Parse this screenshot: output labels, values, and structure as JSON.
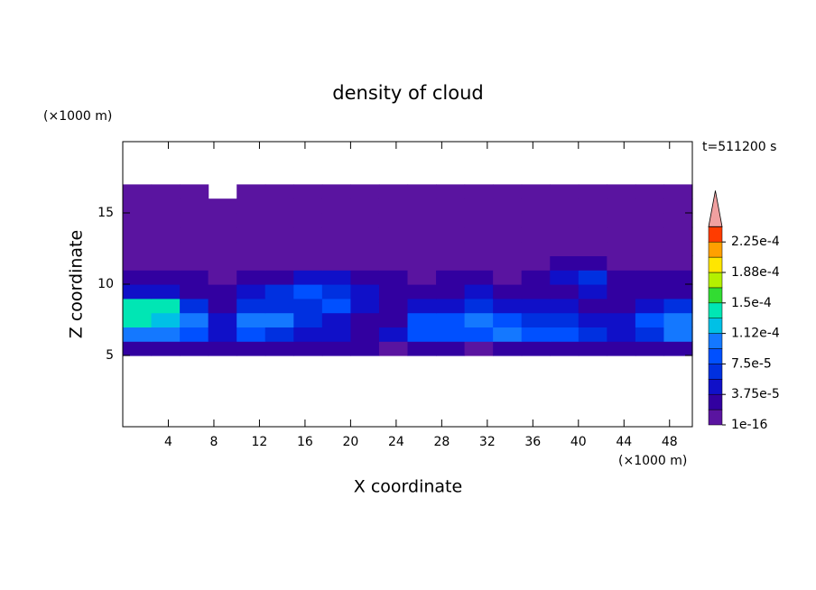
{
  "chart_data": {
    "type": "contour",
    "title": "density of cloud",
    "x_label": "X coordinate",
    "y_label": "Z coordinate",
    "x_unit": "(×1000 m)",
    "y_unit": "(×1000 m)",
    "time_label": "t=511200 s",
    "xlim": [
      0,
      50
    ],
    "ylim": [
      0,
      20
    ],
    "xticks": [
      4,
      8,
      12,
      16,
      20,
      24,
      28,
      32,
      36,
      40,
      44,
      48
    ],
    "yticks": [
      5,
      10,
      15
    ],
    "x": [
      0,
      2.5,
      5,
      7.5,
      10,
      12.5,
      15,
      17.5,
      20,
      22.5,
      25,
      27.5,
      30,
      32.5,
      35,
      37.5,
      40,
      42.5,
      45,
      47.5,
      50
    ],
    "y": [
      5,
      6,
      7,
      8,
      9,
      10,
      11,
      12,
      13,
      14,
      15,
      16,
      17
    ],
    "values": [
      [
        2.5e-05,
        2.5e-05,
        2.5e-05,
        2.5e-05,
        2.5e-05,
        2.5e-05,
        2.5e-05,
        2.5e-05,
        2.5e-05,
        5e-06,
        2.5e-05,
        2.5e-05,
        5e-06,
        2.5e-05,
        2.5e-05,
        2.5e-05,
        2.5e-05,
        2.5e-05,
        2.5e-05,
        2.5e-05
      ],
      [
        0.000105,
        0.000105,
        8.5e-05,
        4.5e-05,
        8.5e-05,
        6.5e-05,
        4.5e-05,
        4.5e-05,
        2.5e-05,
        4.5e-05,
        8.5e-05,
        8.5e-05,
        8.5e-05,
        0.000105,
        8.5e-05,
        8.5e-05,
        6.5e-05,
        4.5e-05,
        6.5e-05,
        0.000105
      ],
      [
        0.00014,
        0.00012,
        0.000105,
        4.5e-05,
        0.000105,
        0.000105,
        6.5e-05,
        4.5e-05,
        2.5e-05,
        2.5e-05,
        8.5e-05,
        8.5e-05,
        0.000105,
        8.5e-05,
        6.5e-05,
        6.5e-05,
        4.5e-05,
        4.5e-05,
        8.5e-05,
        0.000105
      ],
      [
        0.00014,
        0.00014,
        6.5e-05,
        2.5e-05,
        6.5e-05,
        6.5e-05,
        6.5e-05,
        8.5e-05,
        4.5e-05,
        2.5e-05,
        4.5e-05,
        4.5e-05,
        6.5e-05,
        4.5e-05,
        4.5e-05,
        4.5e-05,
        2.5e-05,
        2.5e-05,
        4.5e-05,
        6.5e-05
      ],
      [
        4.5e-05,
        4.5e-05,
        2.5e-05,
        2.5e-05,
        4.5e-05,
        6.5e-05,
        8.5e-05,
        6.5e-05,
        4.5e-05,
        2.5e-05,
        2.5e-05,
        2.5e-05,
        4.5e-05,
        2.5e-05,
        2.5e-05,
        2.5e-05,
        4.5e-05,
        2.5e-05,
        2.5e-05,
        2.5e-05
      ],
      [
        2.5e-05,
        2.5e-05,
        2.5e-05,
        5e-06,
        2.5e-05,
        2.5e-05,
        4.5e-05,
        4.5e-05,
        2.5e-05,
        2.5e-05,
        5e-06,
        2.5e-05,
        2.5e-05,
        5e-06,
        2.5e-05,
        4.5e-05,
        6.5e-05,
        2.5e-05,
        2.5e-05,
        2.5e-05
      ],
      [
        5e-06,
        5e-06,
        5e-06,
        5e-06,
        5e-06,
        5e-06,
        5e-06,
        5e-06,
        5e-06,
        5e-06,
        5e-06,
        5e-06,
        5e-06,
        5e-06,
        5e-06,
        2.5e-05,
        2.5e-05,
        5e-06,
        5e-06,
        5e-06
      ],
      [
        5e-06,
        5e-06,
        5e-06,
        5e-06,
        5e-06,
        5e-06,
        5e-06,
        5e-06,
        5e-06,
        5e-06,
        5e-06,
        5e-06,
        5e-06,
        5e-06,
        5e-06,
        5e-06,
        5e-06,
        5e-06,
        5e-06,
        5e-06
      ],
      [
        5e-06,
        5e-06,
        5e-06,
        5e-06,
        5e-06,
        5e-06,
        5e-06,
        5e-06,
        5e-06,
        5e-06,
        5e-06,
        5e-06,
        5e-06,
        5e-06,
        5e-06,
        5e-06,
        5e-06,
        5e-06,
        5e-06,
        5e-06
      ],
      [
        5e-06,
        5e-06,
        5e-06,
        5e-06,
        5e-06,
        5e-06,
        5e-06,
        5e-06,
        5e-06,
        5e-06,
        5e-06,
        5e-06,
        5e-06,
        5e-06,
        5e-06,
        5e-06,
        5e-06,
        5e-06,
        5e-06,
        5e-06
      ],
      [
        5e-06,
        5e-06,
        5e-06,
        5e-06,
        5e-06,
        5e-06,
        5e-06,
        5e-06,
        5e-06,
        5e-06,
        5e-06,
        5e-06,
        5e-06,
        5e-06,
        5e-06,
        5e-06,
        5e-06,
        5e-06,
        5e-06,
        5e-06
      ],
      [
        5e-06,
        5e-06,
        5e-06,
        null,
        5e-06,
        5e-06,
        5e-06,
        5e-06,
        5e-06,
        5e-06,
        5e-06,
        5e-06,
        5e-06,
        5e-06,
        5e-06,
        5e-06,
        5e-06,
        5e-06,
        5e-06,
        5e-06
      ]
    ],
    "levels": [
      1e-16,
      1.875e-05,
      3.75e-05,
      5.625e-05,
      7.5e-05,
      9.375e-05,
      0.0001125,
      0.00013125,
      0.00015,
      0.00016875,
      0.0001875,
      0.00020625,
      0.000225,
      0.00024375
    ],
    "colors": [
      "#5a14a0",
      "#3200a0",
      "#1010c8",
      "#0030e0",
      "#0050ff",
      "#1478ff",
      "#00c0e6",
      "#00e6b4",
      "#32dc32",
      "#b4f000",
      "#ffe600",
      "#ffa000",
      "#ff3c00"
    ],
    "extend_color": "#f0a0a0",
    "colorbar_ticks": [
      1e-16,
      {
        "value": 3.75e-05,
        "label": "3.75e-5"
      },
      {
        "value": 7.5e-05,
        "label": "7.5e-5"
      },
      {
        "value": 0.0001125,
        "label": "1.12e-4"
      },
      {
        "value": 0.00015,
        "label": "1.5e-4"
      },
      {
        "value": 0.0001875,
        "label": "1.88e-4"
      },
      {
        "value": 0.000225,
        "label": "2.25e-4"
      }
    ]
  }
}
